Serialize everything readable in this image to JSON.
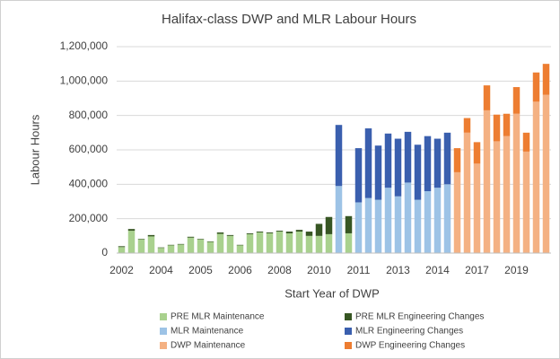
{
  "chart_data": {
    "type": "stacked_bar",
    "title": "Halifax-class DWP and MLR Labour Hours",
    "x_label": "Start Year of DWP",
    "y_label": "Labour Hours",
    "categories": [
      "2002",
      null,
      null,
      null,
      "2004",
      null,
      null,
      null,
      "2005",
      null,
      null,
      null,
      "2006",
      null,
      null,
      null,
      "2008",
      null,
      null,
      null,
      "2010",
      null,
      null,
      null,
      "2011",
      null,
      null,
      null,
      "2013",
      null,
      null,
      null,
      "2014",
      null,
      null,
      null,
      "2017",
      null,
      null,
      null,
      "2019",
      null,
      null,
      null
    ],
    "series": [
      {
        "name": "PRE MLR Maintenance",
        "color": "#a9d18e",
        "values": [
          35000,
          130000,
          80000,
          97000,
          30000,
          45000,
          50000,
          90000,
          80000,
          65000,
          112000,
          100000,
          45000,
          110000,
          120000,
          115000,
          125000,
          115000,
          125000,
          100000,
          100000,
          110000,
          null,
          115000,
          null,
          null,
          null,
          null,
          null,
          null,
          null,
          null,
          null,
          null,
          null,
          null,
          null,
          null,
          null,
          null,
          null,
          null,
          null,
          null
        ]
      },
      {
        "name": "PRE MLR Engineering Changes",
        "color": "#375623",
        "values": [
          5000,
          10000,
          3000,
          8000,
          3000,
          3000,
          3000,
          5000,
          3000,
          3000,
          8000,
          5000,
          3000,
          5000,
          5000,
          5000,
          5000,
          10000,
          10000,
          25000,
          70000,
          100000,
          null,
          100000,
          null,
          null,
          null,
          null,
          null,
          null,
          null,
          null,
          null,
          null,
          null,
          null,
          null,
          null,
          null,
          null,
          null,
          null,
          null,
          null
        ]
      },
      {
        "name": "MLR Maintenance",
        "color": "#9dc3e6",
        "values": [
          null,
          null,
          null,
          null,
          null,
          null,
          null,
          null,
          null,
          null,
          null,
          null,
          null,
          null,
          null,
          null,
          null,
          null,
          null,
          null,
          null,
          null,
          390000,
          null,
          295000,
          320000,
          310000,
          380000,
          330000,
          410000,
          310000,
          360000,
          380000,
          400000,
          null,
          null,
          null,
          null,
          null,
          null,
          null,
          null,
          null,
          null
        ]
      },
      {
        "name": "MLR Engineering Changes",
        "color": "#3a5fae",
        "values": [
          null,
          null,
          null,
          null,
          null,
          null,
          null,
          null,
          null,
          null,
          null,
          null,
          null,
          null,
          null,
          null,
          null,
          null,
          null,
          null,
          null,
          null,
          355000,
          null,
          315000,
          405000,
          315000,
          315000,
          335000,
          295000,
          320000,
          320000,
          285000,
          300000,
          null,
          null,
          null,
          null,
          null,
          null,
          null,
          null,
          null,
          null
        ]
      },
      {
        "name": "DWP Maintenance",
        "color": "#f4b183",
        "values": [
          null,
          null,
          null,
          null,
          null,
          null,
          null,
          null,
          null,
          null,
          null,
          null,
          null,
          null,
          null,
          null,
          null,
          null,
          null,
          null,
          null,
          null,
          null,
          null,
          null,
          null,
          null,
          null,
          null,
          null,
          null,
          null,
          null,
          null,
          470000,
          700000,
          520000,
          830000,
          650000,
          680000,
          810000,
          590000,
          880000,
          920000
        ]
      },
      {
        "name": "DWP Engineering Changes",
        "color": "#ed7d31",
        "values": [
          null,
          null,
          null,
          null,
          null,
          null,
          null,
          null,
          null,
          null,
          null,
          null,
          null,
          null,
          null,
          null,
          null,
          null,
          null,
          null,
          null,
          null,
          null,
          null,
          null,
          null,
          null,
          null,
          null,
          null,
          null,
          null,
          null,
          null,
          140000,
          85000,
          125000,
          145000,
          155000,
          130000,
          155000,
          110000,
          170000,
          180000
        ]
      }
    ],
    "ylim": [
      0,
      1200000
    ],
    "yticks": [
      0,
      {
        "value": 200000,
        "label": "200,000"
      },
      {
        "value": 400000,
        "label": "400,000"
      },
      {
        "value": 600000,
        "label": "600,000"
      },
      {
        "value": 800000,
        "label": "800,000"
      },
      {
        "value": 1000000,
        "label": "1,000,000"
      },
      {
        "value": 1200000,
        "label": "1,200,000"
      }
    ],
    "grid": true
  }
}
